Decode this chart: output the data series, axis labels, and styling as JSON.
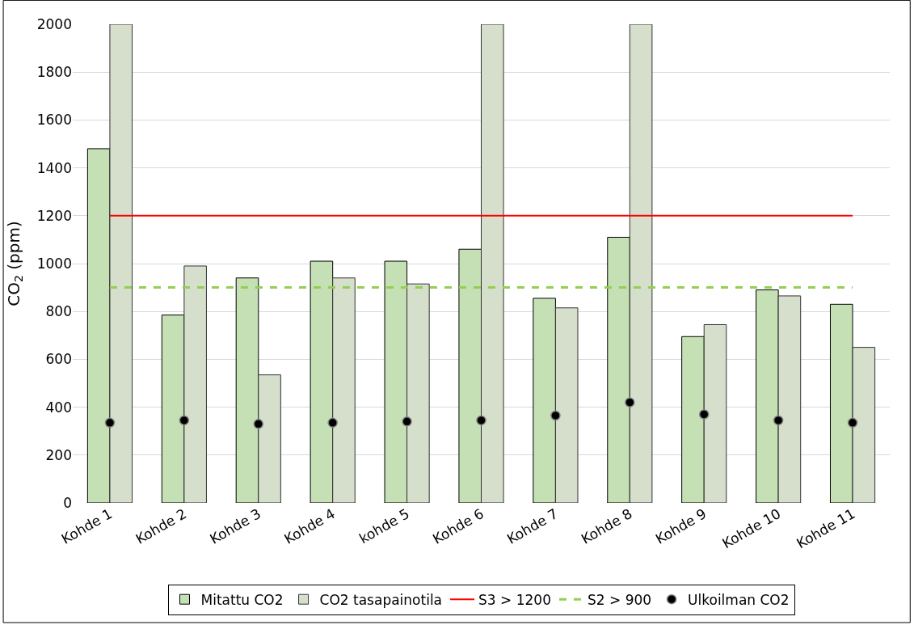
{
  "chart_data": {
    "type": "bar",
    "ylabel": "CO$_{2}$ (ppm)",
    "categories": [
      "Kohde 1",
      "Kohde 2",
      "Kohde 3",
      "Kohde 4",
      "kohde 5",
      "Kohde 6",
      "Kohde 7",
      "Kohde 8",
      "Kohde 9",
      "Kohde 10",
      "Kohde 11"
    ],
    "series": [
      {
        "name": "Mitattu CO2",
        "color": "#c5e0b4",
        "values": [
          1480,
          785,
          940,
          1010,
          1010,
          1060,
          855,
          1110,
          695,
          890,
          830
        ]
      },
      {
        "name": "CO2 tasapainotila",
        "color": "#d5dfcc",
        "values": [
          2000,
          990,
          535,
          940,
          915,
          2000,
          815,
          2000,
          745,
          865,
          650
        ]
      },
      {
        "name": "Ulkoilman CO2",
        "type": "scatter",
        "color": "#000000",
        "marker": "circle",
        "values": [
          335,
          345,
          330,
          335,
          340,
          345,
          365,
          420,
          370,
          345,
          335
        ]
      }
    ],
    "ref_lines": [
      {
        "axis": "y",
        "value": 1200,
        "label": "S3 > 1200",
        "color": "#ff0000",
        "line_style": "solid"
      },
      {
        "axis": "y",
        "value": 900,
        "label": "S2 > 900",
        "color": "#92d050",
        "line_style": "dashed"
      }
    ],
    "ylim": [
      0,
      2000
    ],
    "yticks": [
      0,
      200,
      400,
      600,
      800,
      1000,
      1200,
      1400,
      1600,
      1800,
      2000
    ],
    "grid": "y",
    "legend": "bottom"
  }
}
